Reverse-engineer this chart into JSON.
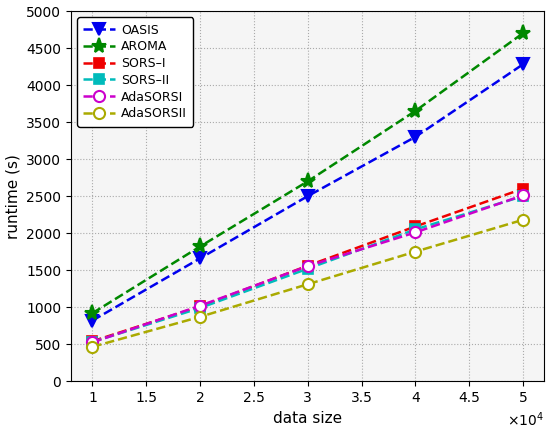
{
  "x": [
    10000,
    20000,
    30000,
    40000,
    50000
  ],
  "OASIS": [
    820,
    1660,
    2500,
    3300,
    4280
  ],
  "AROMA": [
    920,
    1820,
    2700,
    3650,
    4700
  ],
  "SORS_I": [
    540,
    1010,
    1560,
    2090,
    2600
  ],
  "SORS_II": [
    530,
    990,
    1520,
    2050,
    2500
  ],
  "AdaSORSI": [
    525,
    1020,
    1555,
    2010,
    2510
  ],
  "AdaSORSII": [
    465,
    870,
    1310,
    1750,
    2180
  ],
  "colors": {
    "OASIS": "#0000ee",
    "AROMA": "#008800",
    "SORS_I": "#ee0000",
    "SORS_II": "#00bbbb",
    "AdaSORSI": "#cc00cc",
    "AdaSORSII": "#aaaa00"
  },
  "xlabel": "data size",
  "ylabel": "runtime (s)",
  "xlim": [
    8000,
    52000
  ],
  "ylim": [
    0,
    5000
  ],
  "yticks": [
    0,
    500,
    1000,
    1500,
    2000,
    2500,
    3000,
    3500,
    4000,
    4500,
    5000
  ],
  "xticks": [
    10000,
    15000,
    20000,
    25000,
    30000,
    35000,
    40000,
    45000,
    50000
  ],
  "xticklabels": [
    "1",
    "1.5",
    "2",
    "2.5",
    "3",
    "3.5",
    "4",
    "4.5",
    "5"
  ],
  "legend_labels": [
    "OASIS",
    "AROMA",
    "SORS–I",
    "SORS–II",
    "AdaSORSI",
    "AdaSORSII"
  ],
  "bg_color": "#f5f5f5"
}
